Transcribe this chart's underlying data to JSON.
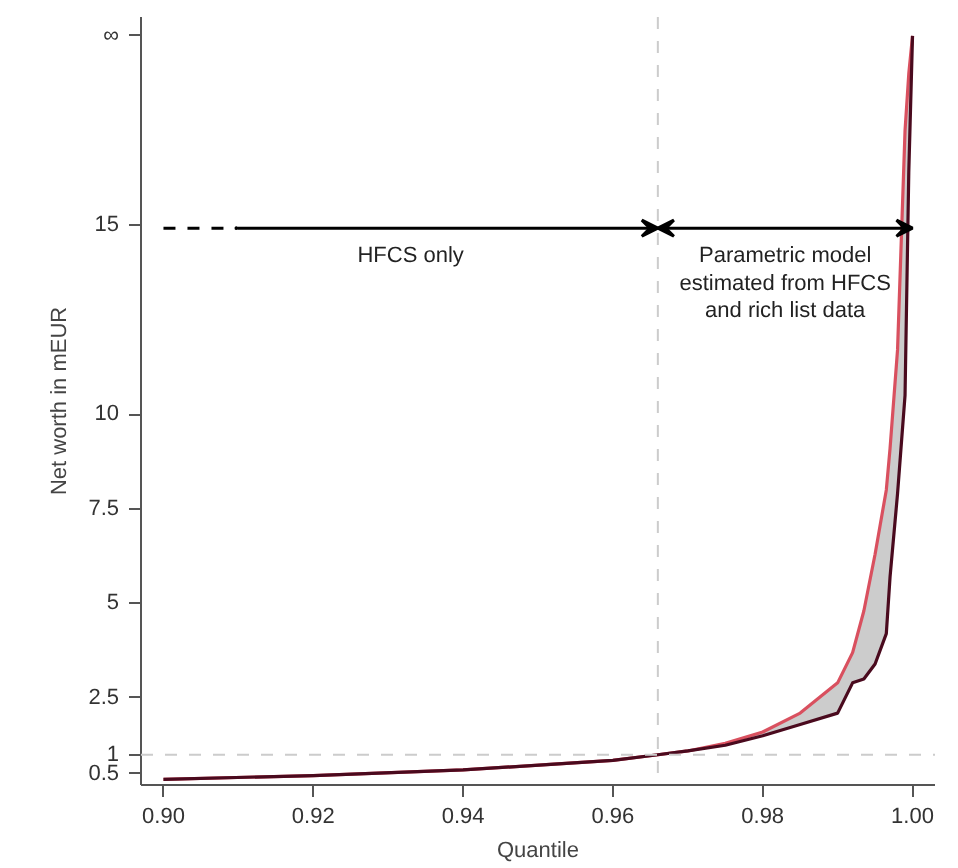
{
  "chart_data": {
    "type": "line",
    "xlabel": "Quantile",
    "ylabel": "Net worth in mEUR",
    "x": [
      0.9,
      0.92,
      0.94,
      0.96,
      0.966,
      0.97,
      0.975,
      0.98,
      0.985,
      0.99,
      0.992,
      0.9935,
      0.995,
      0.9965,
      0.997,
      0.998,
      0.999,
      0.9995,
      1.0
    ],
    "series": [
      {
        "color": "#d9505f",
        "values": [
          0.35,
          0.45,
          0.6,
          0.85,
          1.0,
          1.1,
          1.3,
          1.6,
          2.1,
          2.9,
          3.7,
          4.8,
          6.3,
          8.0,
          9.1,
          11.7,
          17.5,
          19,
          20
        ]
      },
      {
        "color": "#4a0a1e",
        "values": [
          0.35,
          0.45,
          0.6,
          0.85,
          1.0,
          1.1,
          1.25,
          1.5,
          1.8,
          2.1,
          2.9,
          3.0,
          3.4,
          4.2,
          5.7,
          7.9,
          10.5,
          16.4,
          20
        ]
      }
    ],
    "xlim": [
      0.897,
      1.003
    ],
    "ylim": [
      0.2,
      20.5
    ],
    "xticks": [
      {
        "value": 0.9,
        "label": "0.90"
      },
      {
        "value": 0.92,
        "label": "0.92"
      },
      {
        "value": 0.94,
        "label": "0.94"
      },
      {
        "value": 0.96,
        "label": "0.96"
      },
      {
        "value": 0.98,
        "label": "0.98"
      },
      {
        "value": 1.0,
        "label": "1.00"
      }
    ],
    "yticks": [
      0.5,
      1,
      2.5,
      5,
      7.5,
      10,
      15,
      {
        "value": 20,
        "label": "∞"
      }
    ],
    "ref_lines": [
      {
        "axis": "x",
        "value": 0.966,
        "color": "#cccccc",
        "line_style": "dashed"
      },
      {
        "axis": "y",
        "value": 1,
        "color": "#cccccc",
        "line_style": "dashed"
      }
    ],
    "annotations": [
      "HFCS only",
      "Parametric model\nestimated from HFCS\nand rich list data"
    ],
    "grid": false,
    "line_style": "solid",
    "marker": "none"
  }
}
